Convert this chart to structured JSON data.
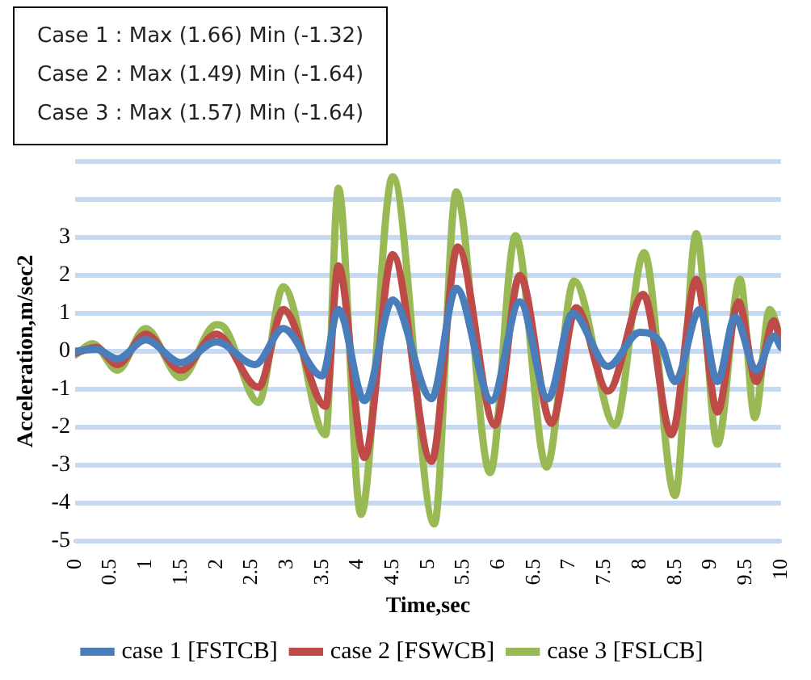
{
  "chart_data": {
    "type": "line",
    "xlabel": "Time,sec",
    "ylabel": "Acceleration,m/sec2",
    "annotations": [
      "Case 1 : Max (1.66) Min (-1.32)",
      "Case 2 : Max (1.49) Min (-1.64)",
      "Case 3 : Max (1.57) Min (-1.64)"
    ],
    "xlim": [
      0,
      10
    ],
    "xticks": [
      0,
      0.5,
      1,
      1.5,
      2,
      2.5,
      3,
      3.5,
      4,
      4.5,
      5,
      5.5,
      6,
      6.5,
      7,
      7.5,
      8,
      8.5,
      9,
      9.5,
      10
    ],
    "ylim": [
      -5,
      5
    ],
    "yticks": [
      -5,
      -4,
      -3,
      -2,
      -1,
      0,
      1,
      2,
      3,
      {
        "value": 4,
        "label": null
      },
      {
        "value": 5,
        "label": null
      }
    ],
    "grid": "y",
    "legend": "bottom",
    "marker": "none",
    "line_style": "solid",
    "series": [
      {
        "name": "case 1 [FSTCB]",
        "color": "#4a7ebb",
        "x": [
          0,
          0.3,
          0.6,
          1.0,
          1.5,
          2.0,
          2.55,
          2.95,
          3.5,
          3.73,
          4.1,
          4.5,
          5.05,
          5.4,
          5.9,
          6.3,
          6.7,
          7.05,
          7.55,
          8.0,
          8.3,
          8.5,
          8.85,
          9.1,
          9.35,
          9.65,
          9.9,
          10
        ],
        "values": [
          0,
          0.05,
          -0.2,
          0.3,
          -0.3,
          0.25,
          -0.35,
          0.6,
          -0.65,
          1.1,
          -1.3,
          1.35,
          -1.25,
          1.66,
          -1.3,
          1.3,
          -1.25,
          1.0,
          -0.4,
          0.5,
          0.2,
          -0.8,
          1.1,
          -0.8,
          0.9,
          -0.5,
          0.4,
          0.1
        ]
      },
      {
        "name": "case 2 [FSWCB]",
        "color": "#be4b48",
        "x": [
          0,
          0.3,
          0.6,
          1.0,
          1.5,
          2.0,
          2.6,
          2.95,
          3.55,
          3.73,
          4.1,
          4.5,
          5.05,
          5.42,
          5.95,
          6.3,
          6.75,
          7.1,
          7.55,
          8.05,
          8.45,
          8.8,
          9.1,
          9.4,
          9.65,
          9.9,
          10
        ],
        "values": [
          -0.05,
          0.1,
          -0.35,
          0.45,
          -0.5,
          0.45,
          -0.95,
          1.1,
          -1.45,
          2.25,
          -2.8,
          2.55,
          -2.9,
          2.75,
          -1.95,
          2.0,
          -1.9,
          1.15,
          -1.05,
          1.5,
          -2.2,
          1.9,
          -1.6,
          1.3,
          -0.8,
          0.8,
          0.2
        ]
      },
      {
        "name": "case 3 [FSLCB]",
        "color": "#98b954",
        "x": [
          0,
          0.25,
          0.6,
          1.0,
          1.5,
          2.0,
          2.1,
          2.6,
          2.95,
          3.55,
          3.73,
          4.05,
          4.5,
          5.09,
          5.4,
          5.88,
          6.24,
          6.68,
          7.07,
          7.65,
          8.06,
          8.5,
          8.8,
          9.1,
          9.42,
          9.63,
          9.84,
          10
        ],
        "values": [
          -0.1,
          0.2,
          -0.5,
          0.6,
          -0.7,
          0.7,
          0.65,
          -1.35,
          1.7,
          -2.2,
          4.3,
          -4.3,
          4.6,
          -4.55,
          4.2,
          -3.2,
          3.05,
          -3.05,
          1.85,
          -1.95,
          2.6,
          -3.8,
          3.1,
          -2.45,
          1.9,
          -1.75,
          1.1,
          0.3
        ]
      }
    ]
  }
}
